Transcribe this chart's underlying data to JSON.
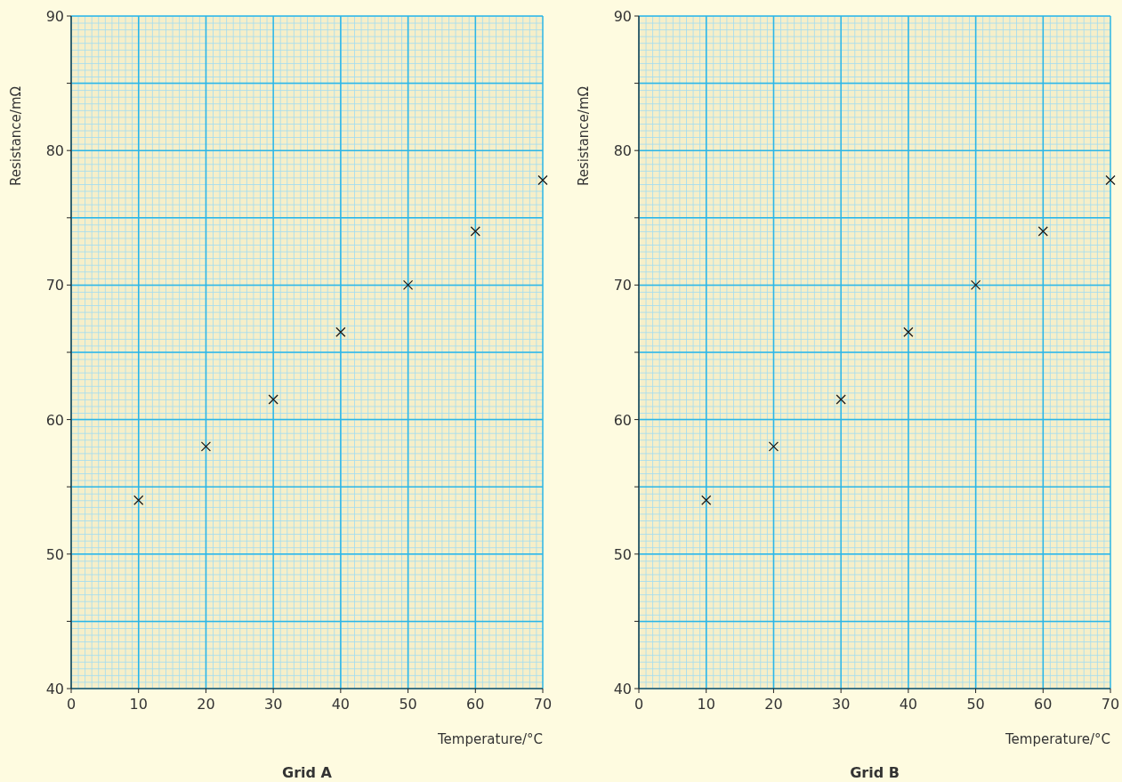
{
  "chart_data": [
    {
      "type": "scatter",
      "title": "Grid A",
      "xlabel": "Temperature/°C",
      "ylabel": "Resistance/mΩ",
      "x": [
        10,
        20,
        30,
        40,
        50,
        60,
        70
      ],
      "values": [
        54,
        58,
        61.5,
        66.5,
        70,
        74,
        77.8
      ],
      "color": "#1a1a1a",
      "marker": "cross",
      "xlim": [
        0,
        70
      ],
      "ylim": [
        40,
        90
      ],
      "xticks": [
        0,
        10,
        20,
        30,
        40,
        50,
        60,
        70
      ],
      "yticks": [
        40,
        {
          "value": 45,
          "label": null
        },
        50,
        {
          "value": 55,
          "label": null
        },
        60,
        {
          "value": 65,
          "label": null
        },
        70,
        {
          "value": 75,
          "label": null
        },
        80,
        {
          "value": 85,
          "label": null
        },
        90
      ],
      "grid": true
    },
    {
      "type": "scatter",
      "title": "Grid B",
      "xlabel": "Temperature/°C",
      "ylabel": "Resistance/mΩ",
      "x": [
        10,
        20,
        30,
        40,
        50,
        60,
        70
      ],
      "values": [
        54,
        58,
        61.5,
        66.5,
        70,
        74,
        77.8
      ],
      "color": "#1a1a1a",
      "marker": "cross",
      "xlim": [
        0,
        70
      ],
      "ylim": [
        40,
        90
      ],
      "xticks": [
        0,
        10,
        20,
        30,
        40,
        50,
        60,
        70
      ],
      "yticks": [
        40,
        {
          "value": 45,
          "label": null
        },
        50,
        {
          "value": 55,
          "label": null
        },
        60,
        {
          "value": 65,
          "label": null
        },
        70,
        {
          "value": 75,
          "label": null
        },
        80,
        {
          "value": 85,
          "label": null
        },
        90
      ],
      "grid": true
    }
  ]
}
